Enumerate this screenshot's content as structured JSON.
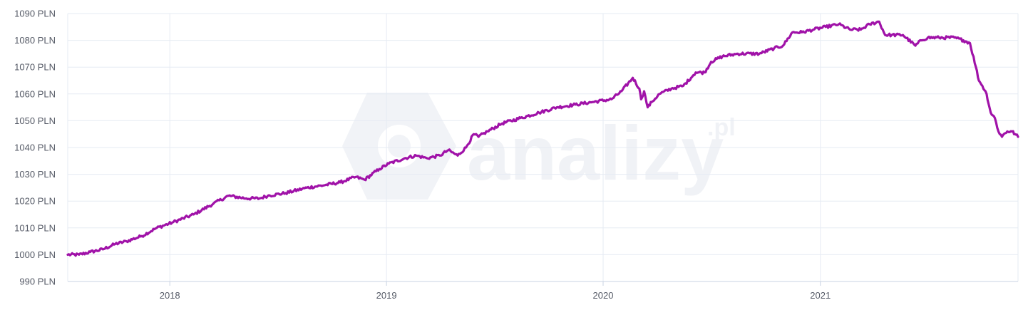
{
  "watermark": {
    "brand": "analizy",
    "suffix": ".pl",
    "icon": "analizy-logo-icon"
  },
  "colors": {
    "line": "#a012a8",
    "grid": "#e6ebf3",
    "axis": "#c9d3e3",
    "watermark": "#eef0f5"
  },
  "chart_data": {
    "type": "line",
    "title": "",
    "xlabel": "",
    "ylabel": "",
    "ylim": [
      990,
      1090
    ],
    "y_ticks": [
      990,
      1000,
      1010,
      1020,
      1030,
      1040,
      1050,
      1060,
      1070,
      1080,
      1090
    ],
    "y_tick_labels": [
      "990 PLN",
      "1000 PLN",
      "1010 PLN",
      "1020 PLN",
      "1030 PLN",
      "1040 PLN",
      "1050 PLN",
      "1060 PLN",
      "1070 PLN",
      "1080 PLN",
      "1090 PLN"
    ],
    "xlim": [
      "2017-07-13",
      "2021-11-30"
    ],
    "x_ticks": [
      "2018-01-01",
      "2019-01-01",
      "2020-01-01",
      "2021-01-01"
    ],
    "x_tick_labels": [
      "2018",
      "2019",
      "2020",
      "2021"
    ],
    "grid": true,
    "legend": "none",
    "series": [
      {
        "x": [
          "2017-07-13",
          "2017-08-01",
          "2017-08-20",
          "2017-09-10",
          "2017-10-01",
          "2017-10-20",
          "2017-11-15",
          "2017-12-10",
          "2018-01-05",
          "2018-02-10",
          "2018-03-15",
          "2018-04-10",
          "2018-05-10",
          "2018-06-01",
          "2018-06-15",
          "2018-07-15",
          "2018-08-20",
          "2018-09-20",
          "2018-10-15",
          "2018-11-10",
          "2018-11-25",
          "2018-12-20",
          "2019-01-05",
          "2019-02-01",
          "2019-02-20",
          "2019-03-10",
          "2019-04-01",
          "2019-04-15",
          "2019-05-01",
          "2019-05-15",
          "2019-05-28",
          "2019-06-05",
          "2019-06-20",
          "2019-07-15",
          "2019-08-15",
          "2019-09-15",
          "2019-10-15",
          "2019-11-15",
          "2019-12-15",
          "2020-01-15",
          "2020-02-01",
          "2020-02-20",
          "2020-03-02",
          "2020-03-05",
          "2020-03-10",
          "2020-03-16",
          "2020-03-23",
          "2020-04-05",
          "2020-04-25",
          "2020-05-15",
          "2020-06-01",
          "2020-06-05",
          "2020-06-20",
          "2020-07-01",
          "2020-07-20",
          "2020-08-15",
          "2020-09-20",
          "2020-10-15",
          "2020-10-30",
          "2020-11-15",
          "2020-12-01",
          "2020-12-20",
          "2021-01-10",
          "2021-02-01",
          "2021-02-20",
          "2021-03-10",
          "2021-03-25",
          "2021-04-10",
          "2021-04-20",
          "2021-05-01",
          "2021-05-20",
          "2021-06-10",
          "2021-06-20",
          "2021-07-01",
          "2021-07-20",
          "2021-08-15",
          "2021-08-30",
          "2021-09-10",
          "2021-09-20",
          "2021-09-25",
          "2021-10-01",
          "2021-10-08",
          "2021-10-15",
          "2021-10-22",
          "2021-10-28",
          "2021-11-03",
          "2021-11-06",
          "2021-11-12",
          "2021-11-20",
          "2021-11-25",
          "2021-11-30"
        ],
        "y": [
          1000,
          1000,
          1001,
          1002,
          1004,
          1005,
          1007,
          1010,
          1012,
          1015,
          1019,
          1022,
          1021,
          1021,
          1022,
          1023,
          1025,
          1026,
          1027,
          1029,
          1028,
          1032,
          1034,
          1036,
          1037,
          1036,
          1037,
          1039,
          1037,
          1040,
          1045,
          1044,
          1046,
          1049,
          1051,
          1053,
          1055,
          1056,
          1057,
          1058,
          1061,
          1066,
          1062,
          1058,
          1061,
          1055,
          1057,
          1060,
          1062,
          1063,
          1067,
          1068,
          1068,
          1072,
          1074,
          1075,
          1075,
          1077,
          1078,
          1083,
          1083,
          1084,
          1085,
          1086,
          1084,
          1084,
          1086,
          1087,
          1082,
          1082,
          1082,
          1078,
          1080,
          1081,
          1081,
          1081,
          1080,
          1079,
          1070,
          1065,
          1063,
          1060,
          1053,
          1051,
          1046,
          1044,
          1045,
          1046,
          1046,
          1045,
          1044
        ]
      }
    ]
  }
}
